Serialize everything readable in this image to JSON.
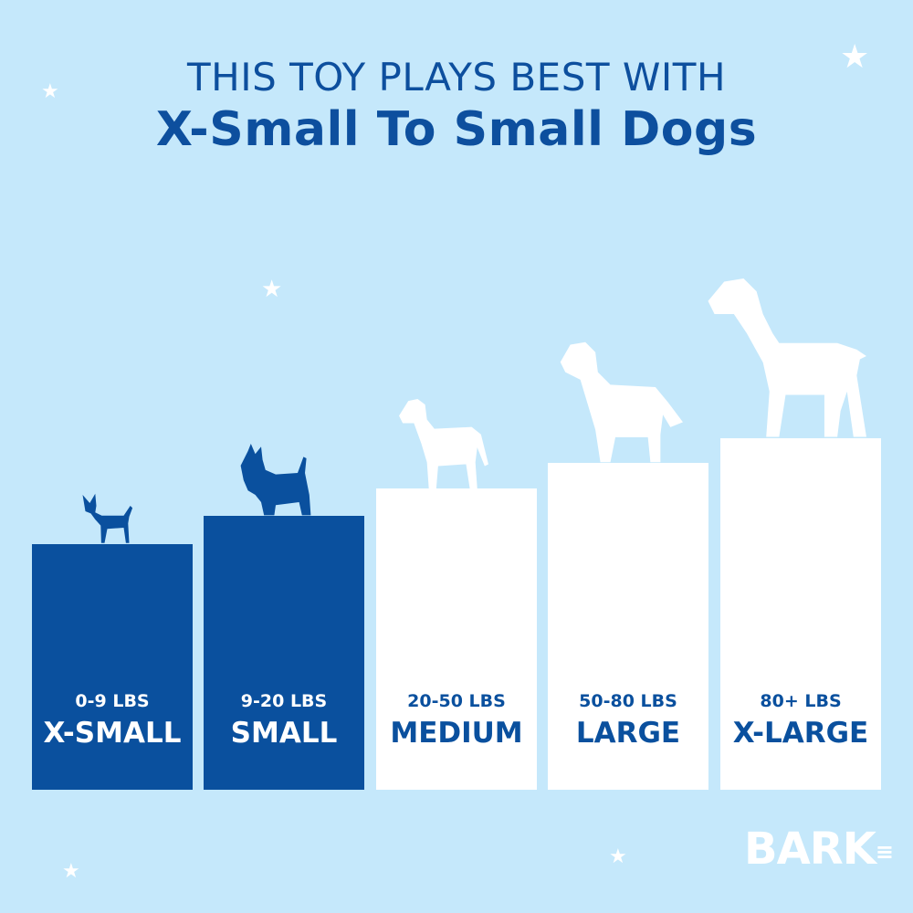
{
  "header": {
    "line1": "THIS TOY PLAYS BEST WITH",
    "line2": "X-Small To Small Dogs"
  },
  "sizes": [
    {
      "weight": "0-9 LBS",
      "label": "X-SMALL",
      "recommended": true
    },
    {
      "weight": "9-20 LBS",
      "label": "SMALL",
      "recommended": true
    },
    {
      "weight": "20-50 LBS",
      "label": "MEDIUM",
      "recommended": false
    },
    {
      "weight": "50-80 LBS",
      "label": "LARGE",
      "recommended": false
    },
    {
      "weight": "80+ LBS",
      "label": "X-LARGE",
      "recommended": false
    }
  ],
  "brand": {
    "logo": "BARK"
  },
  "colors": {
    "background": "#c5e8fb",
    "highlight": "#0a509e",
    "inactive": "#ffffff"
  }
}
